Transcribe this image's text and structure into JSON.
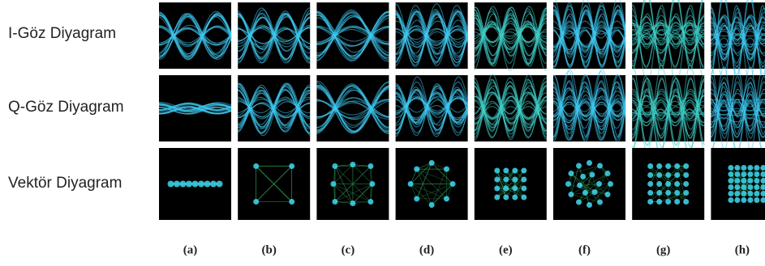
{
  "rows": [
    "I-Göz Diyagram",
    "Q-Göz Diyagram",
    "Vektör Diyagram"
  ],
  "columns": [
    "(a)",
    "(b)",
    "(c)",
    "(d)",
    "(e)",
    "(f)",
    "(g)",
    "(h)"
  ]
}
